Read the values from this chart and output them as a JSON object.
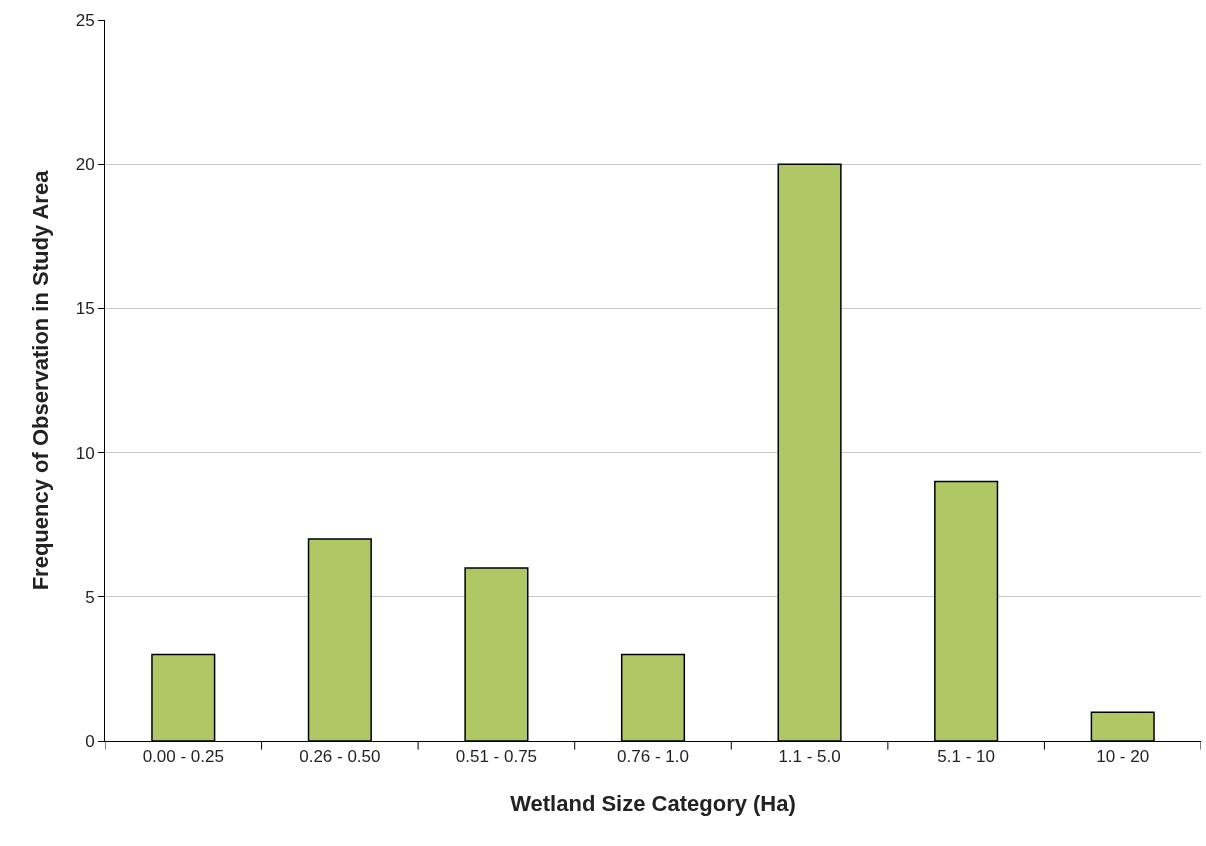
{
  "chart_data": {
    "type": "bar",
    "xlabel": "Wetland Size Category (Ha)",
    "ylabel": "Frequency of Observation in Study Area",
    "categories": [
      "0.00 - 0.25",
      "0.26 - 0.50",
      "0.51 - 0.75",
      "0.76 - 1.0",
      "1.1 - 5.0",
      "5.1 - 10",
      "10 - 20"
    ],
    "values": [
      3,
      7,
      6,
      3,
      20,
      9,
      1
    ],
    "color": "#afc865",
    "ylim": [
      0,
      25
    ],
    "yticks": [
      0,
      5,
      10,
      15,
      20,
      25
    ],
    "grid": "y"
  }
}
